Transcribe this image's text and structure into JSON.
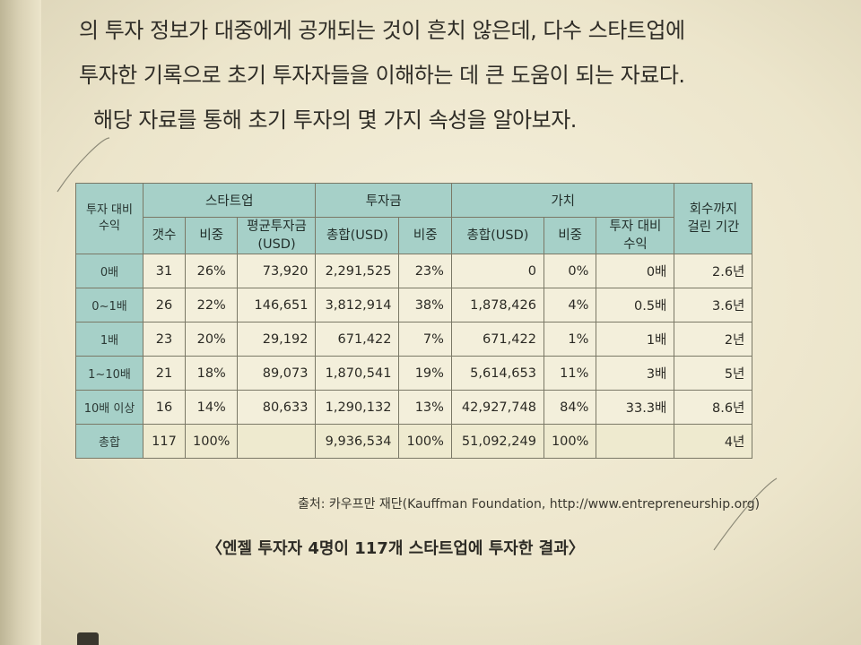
{
  "paragraph": {
    "line1": "의 투자 정보가 대중에게 공개되는 것이 흔치 않은데, 다수 스타트업에",
    "line2": "투자한 기록으로 초기 투자자들을 이해하는 데 큰 도움이 되는 자료다.",
    "line3": "해당 자료를 통해 초기 투자의 몇 가지 속성을 알아보자."
  },
  "table": {
    "row_header": "투자 대비 수익",
    "groups": {
      "startup": "스타트업",
      "investment": "투자금",
      "value": "가치",
      "recovery": "회수까지 걸린 기간"
    },
    "subheaders": {
      "count": "갯수",
      "share1": "비중",
      "avg": "평균투자금(USD)",
      "inv_total": "총합(USD)",
      "share2": "비중",
      "val_total": "총합(USD)",
      "share3": "비중",
      "return": "투자 대비 수익"
    },
    "rows": [
      {
        "label": "0배",
        "count": "31",
        "share": "26%",
        "avg": "73,920",
        "inv_total": "2,291,525",
        "inv_share": "23%",
        "val_total": "0",
        "val_share": "0%",
        "ret": "0배",
        "period": "2.6년"
      },
      {
        "label": "0~1배",
        "count": "26",
        "share": "22%",
        "avg": "146,651",
        "inv_total": "3,812,914",
        "inv_share": "38%",
        "val_total": "1,878,426",
        "val_share": "4%",
        "ret": "0.5배",
        "period": "3.6년"
      },
      {
        "label": "1배",
        "count": "23",
        "share": "20%",
        "avg": "29,192",
        "inv_total": "671,422",
        "inv_share": "7%",
        "val_total": "671,422",
        "val_share": "1%",
        "ret": "1배",
        "period": "2년"
      },
      {
        "label": "1~10배",
        "count": "21",
        "share": "18%",
        "avg": "89,073",
        "inv_total": "1,870,541",
        "inv_share": "19%",
        "val_total": "5,614,653",
        "val_share": "11%",
        "ret": "3배",
        "period": "5년"
      },
      {
        "label": "10배 이상",
        "count": "16",
        "share": "14%",
        "avg": "80,633",
        "inv_total": "1,290,132",
        "inv_share": "13%",
        "val_total": "42,927,748",
        "val_share": "84%",
        "ret": "33.3배",
        "period": "8.6년"
      },
      {
        "label": "총합",
        "count": "117",
        "share": "100%",
        "avg": "",
        "inv_total": "9,936,534",
        "inv_share": "100%",
        "val_total": "51,092,249",
        "val_share": "100%",
        "ret": "",
        "period": "4년"
      }
    ]
  },
  "source": "출처: 카우프만 재단(Kauffman Foundation, http://www.entrepreneurship.org)",
  "caption": "〈엔젤 투자자 4명이 117개 스타트업에 투자한 결과〉",
  "colors": {
    "header_bg": "#a6d0c8",
    "page_bg": "#efe9d2",
    "cell_bg": "#f3efdb"
  }
}
